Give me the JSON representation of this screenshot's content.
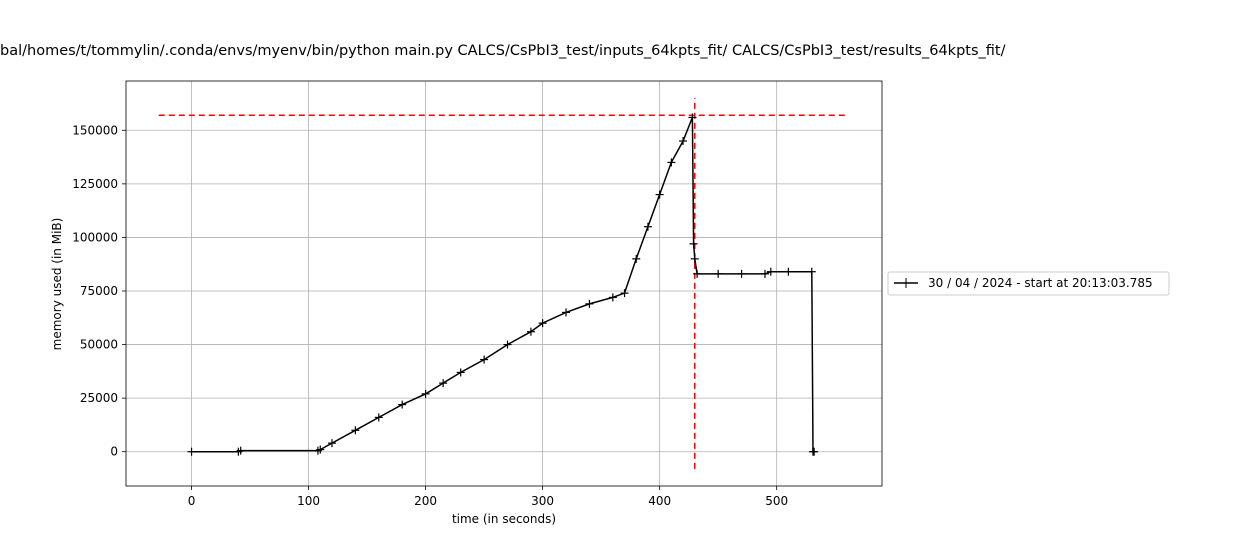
{
  "chart_data": {
    "type": "line",
    "title": "bal/homes/t/tommylin/.conda/envs/myenv/bin/python main.py CALCS/CsPbI3_test/inputs_64kpts_fit/ CALCS/CsPbI3_test/results_64kpts_fit/",
    "xlabel": "time (in seconds)",
    "ylabel": "memory used (in MiB)",
    "xlim": [
      -56,
      590
    ],
    "ylim": [
      -16000,
      173000
    ],
    "x_ticks": [
      0,
      100,
      200,
      300,
      400,
      500
    ],
    "y_ticks": [
      0,
      25000,
      50000,
      75000,
      100000,
      125000,
      150000
    ],
    "x_tick_labels": [
      "0",
      "100",
      "200",
      "300",
      "400",
      "500"
    ],
    "y_tick_labels": [
      "0",
      "25000",
      "50000",
      "75000",
      "100000",
      "125000",
      "150000"
    ],
    "grid": true,
    "legend_position": "outside-right",
    "series": [
      {
        "name": "30 / 04 / 2024 - start at 20:13:03.785",
        "color": "#000000",
        "marker": "+",
        "x": [
          0,
          40,
          42,
          108,
          110,
          120,
          140,
          160,
          180,
          200,
          215,
          230,
          250,
          270,
          290,
          300,
          320,
          340,
          360,
          370,
          380,
          390,
          400,
          410,
          420,
          428,
          429,
          430,
          432,
          450,
          470,
          490,
          495,
          510,
          530,
          531,
          532
        ],
        "y": [
          0,
          0,
          500,
          500,
          1000,
          4000,
          10000,
          16000,
          22000,
          27000,
          32000,
          37000,
          43000,
          50000,
          56000,
          60000,
          65000,
          69000,
          72000,
          74000,
          90000,
          105000,
          120000,
          135000,
          145000,
          156000,
          97000,
          90000,
          83000,
          83000,
          83000,
          83000,
          84000,
          84000,
          84000,
          0,
          0
        ]
      }
    ],
    "annotations": {
      "max_memory_line": {
        "y": 157000,
        "x_from": -28,
        "x_to": 560,
        "color": "#ff0000",
        "style": "dashed"
      },
      "max_time_line": {
        "x": 430,
        "y_from": -8000,
        "y_to": 165000,
        "color": "#ff0000",
        "style": "dashed"
      }
    }
  }
}
